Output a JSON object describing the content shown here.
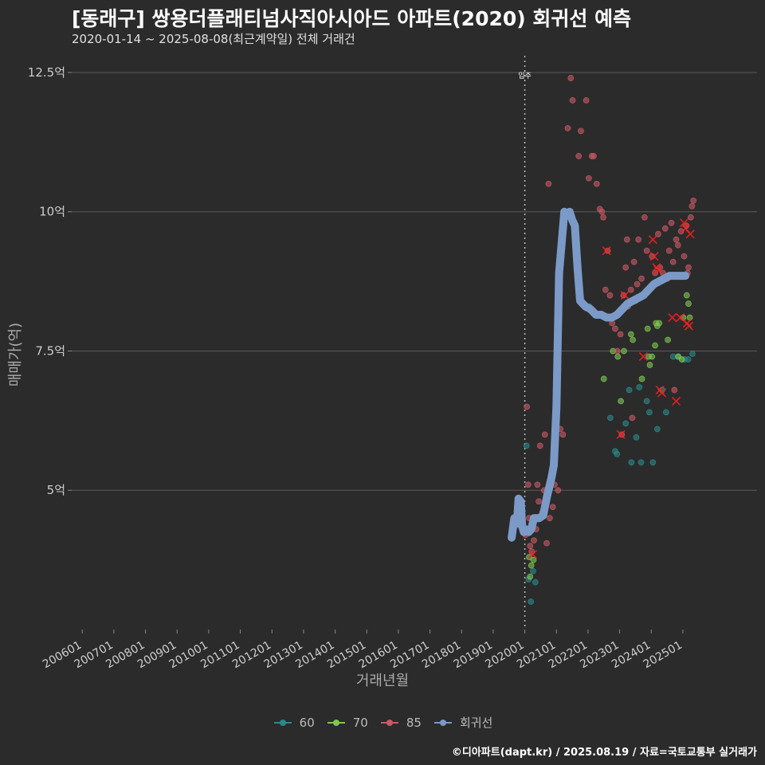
{
  "title": "[동래구] 쌍용더플래티넘사직아시아드 아파트(2020) 회귀선 예측",
  "subtitle": "2020-01-14 ~ 2025-08-08(최근계약일) 전체 거래건",
  "credit": "©디아파트(dapt.kr) / 2025.08.19 / 자료=국토교통부 실거래가",
  "colors": {
    "background": "#2b2b2b",
    "grid": "#5a5a5a",
    "s60": "#2a8a8a",
    "s70": "#7ec850",
    "s85": "#c85a64",
    "regression": "#7b9ac8",
    "highlight": "#ff2020"
  },
  "chart_data": {
    "type": "scatter",
    "xlabel": "거래년월",
    "ylabel": "매매가(억)",
    "ylim": [
      2.5,
      12.8
    ],
    "yticks": [
      5,
      7.5,
      10,
      12.5
    ],
    "ytick_labels": [
      "5억",
      "7.5억",
      "10억",
      "12.5억"
    ],
    "xlim": [
      "2005-09",
      "2025-11"
    ],
    "xticks": [
      "2006-01",
      "2007-01",
      "2008-01",
      "2009-01",
      "2010-01",
      "2011-01",
      "2012-01",
      "2013-01",
      "2014-01",
      "2015-01",
      "2016-01",
      "2017-01",
      "2018-01",
      "2019-01",
      "2020-01",
      "2021-01",
      "2022-01",
      "2023-01",
      "2024-01",
      "2025-01"
    ],
    "xtick_labels": [
      "200601",
      "200701",
      "200801",
      "200901",
      "201001",
      "201101",
      "201201",
      "201301",
      "201401",
      "201501",
      "201601",
      "201701",
      "201801",
      "201901",
      "202001",
      "202101",
      "202201",
      "202301",
      "202401",
      "202501"
    ],
    "annotation": {
      "label": "입주",
      "x": "2020-01"
    },
    "legend": [
      "60",
      "70",
      "85",
      "회귀선"
    ],
    "legend_position": "bottom",
    "series": [
      {
        "name": "60",
        "points": [
          [
            "2020-01-20",
            5.8
          ],
          [
            "2020-02-15",
            3.4
          ],
          [
            "2020-03-10",
            3.0
          ],
          [
            "2020-04-05",
            3.55
          ],
          [
            "2020-05-01",
            3.35
          ],
          [
            "2022-09-15",
            6.3
          ],
          [
            "2022-11-10",
            5.7
          ],
          [
            "2022-12-01",
            5.65
          ],
          [
            "2023-03-10",
            6.2
          ],
          [
            "2023-04-20",
            6.8
          ],
          [
            "2023-05-15",
            5.5
          ],
          [
            "2023-07-10",
            5.95
          ],
          [
            "2023-08-15",
            6.85
          ],
          [
            "2023-09-05",
            5.5
          ],
          [
            "2023-11-10",
            6.6
          ],
          [
            "2023-12-10",
            6.4
          ],
          [
            "2024-01-20",
            5.5
          ],
          [
            "2024-03-10",
            6.1
          ],
          [
            "2024-05-05",
            6.8
          ],
          [
            "2024-06-20",
            6.4
          ],
          [
            "2024-09-10",
            7.4
          ],
          [
            "2024-11-05",
            7.4
          ],
          [
            "2025-01-20",
            7.35
          ],
          [
            "2025-03-01",
            7.35
          ],
          [
            "2025-04-20",
            7.45
          ],
          [
            "2022-01-15",
            8.3
          ]
        ]
      },
      {
        "name": "70",
        "points": [
          [
            "2020-02-20",
            3.8
          ],
          [
            "2020-03-15",
            3.65
          ],
          [
            "2020-04-10",
            3.75
          ],
          [
            "2020-03-01",
            3.45
          ],
          [
            "2022-07-01",
            7.0
          ],
          [
            "2022-10-15",
            7.5
          ],
          [
            "2022-12-10",
            7.4
          ],
          [
            "2023-01-15",
            6.6
          ],
          [
            "2023-02-20",
            7.5
          ],
          [
            "2023-05-10",
            7.8
          ],
          [
            "2023-06-01",
            7.7
          ],
          [
            "2023-09-15",
            7.0
          ],
          [
            "2023-11-20",
            7.9
          ],
          [
            "2023-12-15",
            7.25
          ],
          [
            "2024-01-10",
            7.4
          ],
          [
            "2024-02-15",
            7.6
          ],
          [
            "2024-02-25",
            8.0
          ],
          [
            "2024-03-10",
            7.95
          ],
          [
            "2024-04-01",
            8.0
          ],
          [
            "2024-07-10",
            7.7
          ],
          [
            "2024-11-10",
            7.4
          ],
          [
            "2025-02-15",
            8.5
          ],
          [
            "2025-03-05",
            8.35
          ],
          [
            "2025-03-20",
            8.1
          ],
          [
            "2023-12-01",
            7.4
          ],
          [
            "2024-12-20",
            7.35
          ],
          [
            "2025-01-05",
            8.1
          ]
        ]
      },
      {
        "name": "85",
        "points": [
          [
            "2020-01-10",
            4.2
          ],
          [
            "2020-01-25",
            6.5
          ],
          [
            "2020-02-10",
            5.1
          ],
          [
            "2020-02-20",
            4.5
          ],
          [
            "2020-03-01",
            4.0
          ],
          [
            "2020-03-20",
            3.9
          ],
          [
            "2020-04-15",
            4.1
          ],
          [
            "2020-05-10",
            4.3
          ],
          [
            "2020-05-25",
            5.1
          ],
          [
            "2020-06-10",
            4.8
          ],
          [
            "2020-06-25",
            5.8
          ],
          [
            "2020-07-20",
            4.6
          ],
          [
            "2020-08-10",
            5.0
          ],
          [
            "2020-09-10",
            4.05
          ],
          [
            "2020-10-15",
            4.5
          ],
          [
            "2020-11-20",
            4.7
          ],
          [
            "2020-12-10",
            5.1
          ],
          [
            "2021-01-20",
            5.0
          ],
          [
            "2021-02-15",
            6.1
          ],
          [
            "2020-08-20",
            6.0
          ],
          [
            "2020-10-01",
            10.5
          ],
          [
            "2021-03-15",
            6.0
          ],
          [
            "2021-05-10",
            11.5
          ],
          [
            "2021-06-15",
            12.4
          ],
          [
            "2021-07-05",
            12.0
          ],
          [
            "2021-07-20",
            9.8
          ],
          [
            "2021-09-15",
            11.0
          ],
          [
            "2021-10-10",
            11.45
          ],
          [
            "2021-12-10",
            12.0
          ],
          [
            "2022-01-10",
            10.6
          ],
          [
            "2022-02-15",
            11.0
          ],
          [
            "2022-03-05",
            11.0
          ],
          [
            "2022-04-10",
            10.5
          ],
          [
            "2022-05-15",
            10.05
          ],
          [
            "2022-06-10",
            10.0
          ],
          [
            "2022-06-25",
            9.9
          ],
          [
            "2022-07-20",
            8.6
          ],
          [
            "2022-08-15",
            9.3
          ],
          [
            "2022-09-10",
            8.5
          ],
          [
            "2022-10-05",
            8.0
          ],
          [
            "2022-11-10",
            7.9
          ],
          [
            "2022-12-05",
            7.5
          ],
          [
            "2023-01-10",
            7.8
          ],
          [
            "2023-02-15",
            8.5
          ],
          [
            "2023-03-10",
            9.0
          ],
          [
            "2023-04-05",
            8.3
          ],
          [
            "2023-05-10",
            8.6
          ],
          [
            "2023-06-15",
            9.1
          ],
          [
            "2023-07-20",
            8.7
          ],
          [
            "2023-08-05",
            9.5
          ],
          [
            "2023-09-10",
            8.8
          ],
          [
            "2023-10-15",
            9.9
          ],
          [
            "2023-11-10",
            9.3
          ],
          [
            "2023-12-05",
            8.6
          ],
          [
            "2024-01-10",
            9.2
          ],
          [
            "2024-02-15",
            8.9
          ],
          [
            "2024-03-20",
            9.6
          ],
          [
            "2024-04-10",
            9.0
          ],
          [
            "2024-05-15",
            8.9
          ],
          [
            "2024-06-10",
            9.7
          ],
          [
            "2024-07-05",
            8.8
          ],
          [
            "2024-08-20",
            9.8
          ],
          [
            "2024-09-10",
            9.1
          ],
          [
            "2024-10-15",
            9.5
          ],
          [
            "2024-11-05",
            9.4
          ],
          [
            "2024-12-10",
            9.65
          ],
          [
            "2025-01-15",
            9.2
          ],
          [
            "2025-02-10",
            9.75
          ],
          [
            "2025-03-05",
            9.0
          ],
          [
            "2025-04-01",
            9.9
          ],
          [
            "2025-04-15",
            10.1
          ],
          [
            "2025-05-01",
            10.2
          ],
          [
            "2023-03-25",
            9.5
          ],
          [
            "2023-07-01",
            8.4
          ],
          [
            "2024-07-25",
            9.3
          ],
          [
            "2025-02-25",
            8.9
          ],
          [
            "2023-01-25",
            6.0
          ],
          [
            "2023-05-25",
            6.3
          ],
          [
            "2024-09-25",
            6.8
          ]
        ]
      }
    ],
    "highlights": [
      [
        "2020-04-01",
        3.85
      ],
      [
        "2022-08-01",
        9.3
      ],
      [
        "2023-01-15",
        6.0
      ],
      [
        "2023-03-01",
        8.5
      ],
      [
        "2023-10-01",
        7.4
      ],
      [
        "2024-01-20",
        9.5
      ],
      [
        "2024-02-05",
        9.2
      ],
      [
        "2024-03-01",
        9.0
      ],
      [
        "2024-03-20",
        8.95
      ],
      [
        "2024-04-10",
        6.8
      ],
      [
        "2024-05-01",
        6.75
      ],
      [
        "2024-09-01",
        8.1
      ],
      [
        "2024-10-15",
        6.6
      ],
      [
        "2024-12-01",
        8.1
      ],
      [
        "2025-01-15",
        9.8
      ],
      [
        "2025-02-01",
        9.7
      ],
      [
        "2025-02-20",
        8.0
      ],
      [
        "2025-03-10",
        7.95
      ],
      [
        "2025-03-25",
        9.6
      ]
    ],
    "regression": {
      "name": "회귀선",
      "points": [
        [
          "2019-08-01",
          4.15
        ],
        [
          "2019-09-01",
          4.5
        ],
        [
          "2019-10-01",
          4.4
        ],
        [
          "2019-10-20",
          4.85
        ],
        [
          "2019-11-15",
          4.8
        ],
        [
          "2019-12-01",
          4.35
        ],
        [
          "2019-12-20",
          4.25
        ],
        [
          "2020-01-15",
          4.3
        ],
        [
          "2020-02-15",
          4.25
        ],
        [
          "2020-03-15",
          4.3
        ],
        [
          "2020-04-15",
          4.5
        ],
        [
          "2020-06-15",
          4.5
        ],
        [
          "2020-08-01",
          4.55
        ],
        [
          "2020-09-15",
          4.9
        ],
        [
          "2020-11-01",
          5.2
        ],
        [
          "2020-12-01",
          5.45
        ],
        [
          "2021-01-01",
          6.5
        ],
        [
          "2021-02-01",
          8.9
        ],
        [
          "2021-03-01",
          9.45
        ],
        [
          "2021-04-01",
          10.0
        ],
        [
          "2021-05-01",
          9.95
        ],
        [
          "2021-06-01",
          10.0
        ],
        [
          "2021-07-01",
          9.85
        ],
        [
          "2021-08-01",
          9.75
        ],
        [
          "2021-09-01",
          9.0
        ],
        [
          "2021-10-01",
          8.4
        ],
        [
          "2021-12-01",
          8.3
        ],
        [
          "2022-02-01",
          8.25
        ],
        [
          "2022-04-01",
          8.15
        ],
        [
          "2022-06-01",
          8.15
        ],
        [
          "2022-08-01",
          8.1
        ],
        [
          "2022-10-01",
          8.1
        ],
        [
          "2022-12-01",
          8.15
        ],
        [
          "2023-02-01",
          8.25
        ],
        [
          "2023-04-01",
          8.35
        ],
        [
          "2023-06-01",
          8.4
        ],
        [
          "2023-08-01",
          8.45
        ],
        [
          "2023-10-01",
          8.5
        ],
        [
          "2023-12-01",
          8.6
        ],
        [
          "2024-02-01",
          8.7
        ],
        [
          "2024-04-01",
          8.75
        ],
        [
          "2024-06-01",
          8.8
        ],
        [
          "2024-08-01",
          8.85
        ],
        [
          "2024-10-01",
          8.85
        ],
        [
          "2024-12-01",
          8.85
        ],
        [
          "2025-02-01",
          8.85
        ]
      ]
    }
  }
}
